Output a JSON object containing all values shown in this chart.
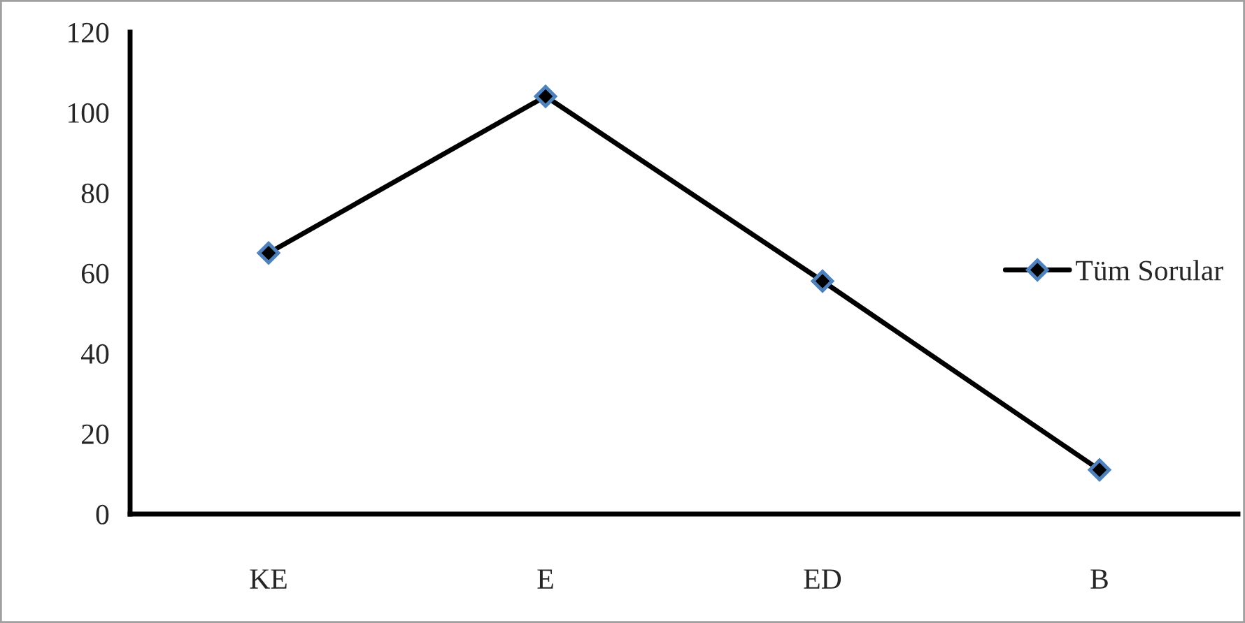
{
  "chart_data": {
    "type": "line",
    "categories": [
      "KE",
      "E",
      "ED",
      "B"
    ],
    "series": [
      {
        "name": "Tüm Sorular",
        "color": "#000000",
        "values": [
          65,
          104,
          58,
          11
        ]
      }
    ],
    "ylim": [
      0,
      120
    ],
    "yticks": [
      0,
      20,
      40,
      60,
      80,
      100,
      120
    ],
    "marker": "diamond",
    "line_style": "solid",
    "legend": "right",
    "grid": false
  }
}
